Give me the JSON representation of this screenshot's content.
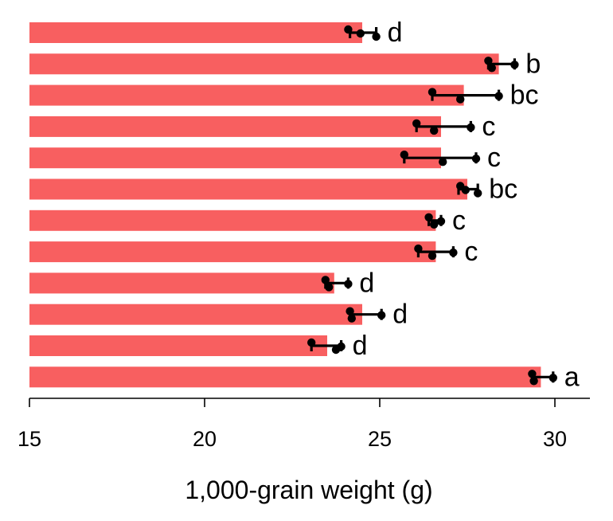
{
  "chart_data": {
    "type": "bar",
    "orientation": "horizontal",
    "xlabel": "1,000-grain weight (g)",
    "xlim": [
      15,
      31
    ],
    "xticks": [
      15,
      20,
      25,
      30
    ],
    "bar_color": "#f85f60",
    "bars": [
      {
        "value": 24.5,
        "err": [
          24.15,
          24.9
        ],
        "points": [
          24.1,
          24.9,
          24.45
        ],
        "letter": "d"
      },
      {
        "value": 28.4,
        "err": [
          28.1,
          28.85
        ],
        "points": [
          28.1,
          28.2,
          28.85
        ],
        "letter": "b"
      },
      {
        "value": 27.4,
        "err": [
          26.5,
          28.4
        ],
        "points": [
          26.5,
          27.3,
          28.4
        ],
        "letter": "bc"
      },
      {
        "value": 26.75,
        "err": [
          26.05,
          27.6
        ],
        "points": [
          26.05,
          26.55,
          27.6
        ],
        "letter": "c"
      },
      {
        "value": 26.75,
        "err": [
          25.7,
          27.75
        ],
        "points": [
          25.7,
          26.8,
          27.75
        ],
        "letter": "c"
      },
      {
        "value": 27.5,
        "err": [
          27.25,
          27.8
        ],
        "points": [
          27.3,
          27.8,
          27.45
        ],
        "letter": "bc"
      },
      {
        "value": 26.6,
        "err": [
          26.4,
          26.75
        ],
        "points": [
          26.4,
          26.55,
          26.75
        ],
        "letter": "c"
      },
      {
        "value": 26.6,
        "err": [
          26.1,
          27.1
        ],
        "points": [
          26.1,
          26.5,
          27.1
        ],
        "letter": "c"
      },
      {
        "value": 23.7,
        "err": [
          23.45,
          24.1
        ],
        "points": [
          23.45,
          23.55,
          24.1
        ],
        "letter": "d"
      },
      {
        "value": 24.5,
        "err": [
          24.15,
          25.05
        ],
        "points": [
          24.15,
          24.2,
          25.05
        ],
        "letter": "d"
      },
      {
        "value": 23.5,
        "err": [
          23.05,
          23.9
        ],
        "points": [
          23.05,
          23.75,
          23.9
        ],
        "letter": "d"
      },
      {
        "value": 29.6,
        "err": [
          29.35,
          29.95
        ],
        "points": [
          29.35,
          29.4,
          29.95
        ],
        "letter": "a"
      }
    ]
  }
}
